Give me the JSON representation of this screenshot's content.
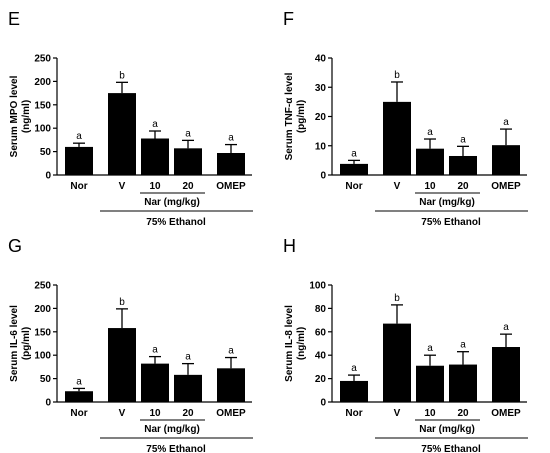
{
  "chart_data": [
    {
      "type": "bar",
      "panel_letter": "E",
      "ylabel_line1": "Serum MPO level",
      "ylabel_line2": "(ng/ml)",
      "ylim": [
        0,
        250
      ],
      "yticks": [
        0,
        50,
        100,
        150,
        200,
        250
      ],
      "categories": [
        "Nor",
        "V",
        "10",
        "20",
        "OMEP"
      ],
      "values": [
        60,
        175,
        78,
        57,
        47
      ],
      "errors": [
        8,
        23,
        16,
        17,
        18
      ],
      "significance": [
        "a",
        "b",
        "a",
        "a",
        "a"
      ],
      "sub_group_label": "Nar (mg/kg)",
      "group_label": "75% Ethanol"
    },
    {
      "type": "bar",
      "panel_letter": "F",
      "ylabel_line1": "Serum TNF-α level",
      "ylabel_line2": "(pg/ml)",
      "ylim": [
        0,
        40
      ],
      "yticks": [
        0,
        10,
        20,
        30,
        40
      ],
      "categories": [
        "Nor",
        "V",
        "10",
        "20",
        "OMEP"
      ],
      "values": [
        3.8,
        25.0,
        9.0,
        6.5,
        10.2
      ],
      "errors": [
        1.2,
        6.8,
        3.3,
        3.3,
        5.5
      ],
      "significance": [
        "a",
        "b",
        "a",
        "a",
        "a"
      ],
      "sub_group_label": "Nar (mg/kg)",
      "group_label": "75% Ethanol"
    },
    {
      "type": "bar",
      "panel_letter": "G",
      "ylabel_line1": "Serum IL-6 level",
      "ylabel_line2": "(pg/ml)",
      "ylim": [
        0,
        250
      ],
      "yticks": [
        0,
        50,
        100,
        150,
        200,
        250
      ],
      "categories": [
        "Nor",
        "V",
        "10",
        "20",
        "OMEP"
      ],
      "values": [
        23,
        158,
        82,
        58,
        72
      ],
      "errors": [
        6,
        41,
        15,
        24,
        23
      ],
      "significance": [
        "a",
        "b",
        "a",
        "a",
        "a"
      ],
      "sub_group_label": "Nar (mg/kg)",
      "group_label": "75% Ethanol"
    },
    {
      "type": "bar",
      "panel_letter": "H",
      "ylabel_line1": "Serum IL-8 level",
      "ylabel_line2": "(ng/ml)",
      "ylim": [
        0,
        100
      ],
      "yticks": [
        0,
        20,
        40,
        60,
        80,
        100
      ],
      "categories": [
        "Nor",
        "V",
        "10",
        "20",
        "OMEP"
      ],
      "values": [
        18,
        67,
        31,
        32,
        47
      ],
      "errors": [
        5,
        16,
        9,
        11,
        11
      ],
      "significance": [
        "a",
        "b",
        "a",
        "a",
        "a"
      ],
      "sub_group_label": "Nar (mg/kg)",
      "group_label": "75% Ethanol"
    }
  ]
}
